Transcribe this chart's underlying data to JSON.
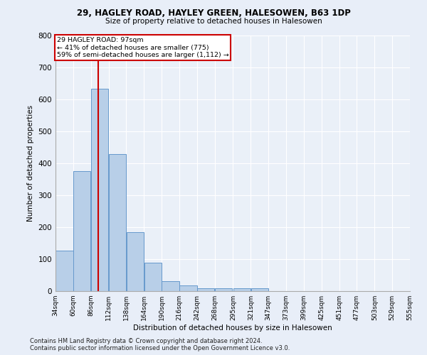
{
  "title1": "29, HAGLEY ROAD, HAYLEY GREEN, HALESOWEN, B63 1DP",
  "title2": "Size of property relative to detached houses in Halesowen",
  "xlabel": "Distribution of detached houses by size in Halesowen",
  "ylabel": "Number of detached properties",
  "footnote1": "Contains HM Land Registry data © Crown copyright and database right 2024.",
  "footnote2": "Contains public sector information licensed under the Open Government Licence v3.0.",
  "bar_color": "#b8cfe8",
  "bar_edge_color": "#6699cc",
  "annotation_line_color": "#cc0000",
  "annotation_box_color": "#cc0000",
  "annotation_text": "29 HAGLEY ROAD: 97sqm\n← 41% of detached houses are smaller (775)\n59% of semi-detached houses are larger (1,112) →",
  "property_size_sqm": 97,
  "bin_edges": [
    34,
    60,
    86,
    112,
    138,
    164,
    190,
    216,
    242,
    268,
    295,
    321,
    347,
    373,
    399,
    425,
    451,
    477,
    503,
    529,
    555
  ],
  "bar_heights": [
    127,
    375,
    633,
    428,
    185,
    88,
    32,
    17,
    10,
    10,
    10,
    10,
    0,
    0,
    0,
    0,
    0,
    0,
    0,
    0
  ],
  "ylim": [
    0,
    800
  ],
  "xlim": [
    34,
    555
  ],
  "yticks": [
    0,
    100,
    200,
    300,
    400,
    500,
    600,
    700,
    800
  ],
  "background_color": "#e8eef8",
  "plot_background": "#eaf0f8"
}
